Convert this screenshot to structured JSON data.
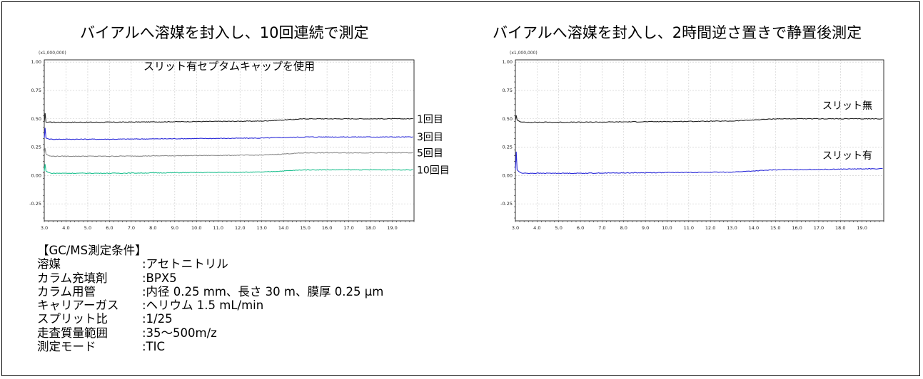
{
  "charts": {
    "left": {
      "title": "バイアルへ溶媒を封入し、10回連続で測定",
      "annotation": "スリット有セプタムキャップを使用"
    },
    "right": {
      "title": "バイアルへ溶媒を封入し、2時間逆さ置きで静置後測定"
    }
  },
  "conditions": {
    "heading": "【GC/MS測定条件】",
    "rows": [
      {
        "label": "溶媒",
        "value": ":アセトニトリル"
      },
      {
        "label": "カラム充填剤",
        "value": ":BPX5"
      },
      {
        "label": "カラム用管",
        "value": ":内径 0.25 mm、長さ 30 m、膜厚 0.25 µm"
      },
      {
        "label": "キャリアーガス",
        "value": ":ヘリウム  1.5 mL/min"
      },
      {
        "label": "スプリット比",
        "value": ":1/25"
      },
      {
        "label": "走査質量範囲",
        "value": ":35～500m/z"
      },
      {
        "label": "測定モード",
        "value": ":TIC"
      }
    ]
  },
  "chart_data": [
    {
      "type": "line",
      "title": "バイアルへ溶媒を封入し、10回連続で測定",
      "annotation": "スリット有セプタムキャップを使用",
      "y_multiplier_label": "(x1,000,000)",
      "xlim": [
        3.0,
        20.0
      ],
      "ylim": [
        -0.4,
        1.02
      ],
      "x_ticks": [
        "3.0",
        "4.0",
        "5.0",
        "6.0",
        "7.0",
        "8.0",
        "9.0",
        "10.0",
        "11.0",
        "12.0",
        "13.0",
        "14.0",
        "15.0",
        "16.0",
        "17.0",
        "18.0",
        "19.0"
      ],
      "y_ticks": [
        "1.00",
        "0.75",
        "0.50",
        "0.25",
        "0.00",
        "-0.25"
      ],
      "grid": true,
      "series": [
        {
          "name": "1回目",
          "color": "#222222",
          "spike": 0.55,
          "x": [
            3.0,
            3.3,
            6.0,
            13.0,
            15.0,
            20.0
          ],
          "y": [
            0.47,
            0.47,
            0.47,
            0.48,
            0.5,
            0.5
          ]
        },
        {
          "name": "3回目",
          "color": "#2a2ad8",
          "spike": 0.42,
          "x": [
            3.0,
            3.3,
            6.0,
            13.0,
            15.0,
            20.0
          ],
          "y": [
            0.33,
            0.32,
            0.32,
            0.33,
            0.34,
            0.34
          ]
        },
        {
          "name": "5回目",
          "color": "#8a8a8a",
          "spike": 0.24,
          "x": [
            3.0,
            3.3,
            6.0,
            13.0,
            15.0,
            20.0
          ],
          "y": [
            0.19,
            0.17,
            0.17,
            0.18,
            0.2,
            0.2
          ]
        },
        {
          "name": "10回目",
          "color": "#20c090",
          "spike": 0.1,
          "x": [
            3.0,
            3.3,
            6.0,
            13.0,
            15.0,
            20.0
          ],
          "y": [
            0.04,
            0.02,
            0.02,
            0.03,
            0.05,
            0.05
          ]
        }
      ]
    },
    {
      "type": "line",
      "title": "バイアルへ溶媒を封入し、2時間逆さ置きで静置後測定",
      "y_multiplier_label": "(x1,000,000)",
      "xlim": [
        3.0,
        20.0
      ],
      "ylim": [
        -0.4,
        1.02
      ],
      "x_ticks": [
        "3.0",
        "4.0",
        "5.0",
        "6.0",
        "7.0",
        "8.0",
        "9.0",
        "10.0",
        "11.0",
        "12.0",
        "13.0",
        "14.0",
        "15.0",
        "16.0",
        "17.0",
        "18.0",
        "19.0"
      ],
      "y_ticks": [
        "1.00",
        "0.75",
        "0.50",
        "0.25",
        "0.00",
        "-0.25"
      ],
      "grid": true,
      "series": [
        {
          "name": "スリット無",
          "color": "#222222",
          "spike": 0.53,
          "x": [
            3.0,
            3.3,
            6.0,
            13.0,
            15.0,
            20.0
          ],
          "y": [
            0.49,
            0.47,
            0.47,
            0.48,
            0.5,
            0.5
          ]
        },
        {
          "name": "スリット有",
          "color": "#2a2ad8",
          "spike": 0.21,
          "x": [
            3.0,
            3.3,
            6.0,
            13.0,
            15.0,
            20.0
          ],
          "y": [
            0.05,
            0.02,
            0.02,
            0.03,
            0.05,
            0.06
          ]
        }
      ]
    }
  ]
}
